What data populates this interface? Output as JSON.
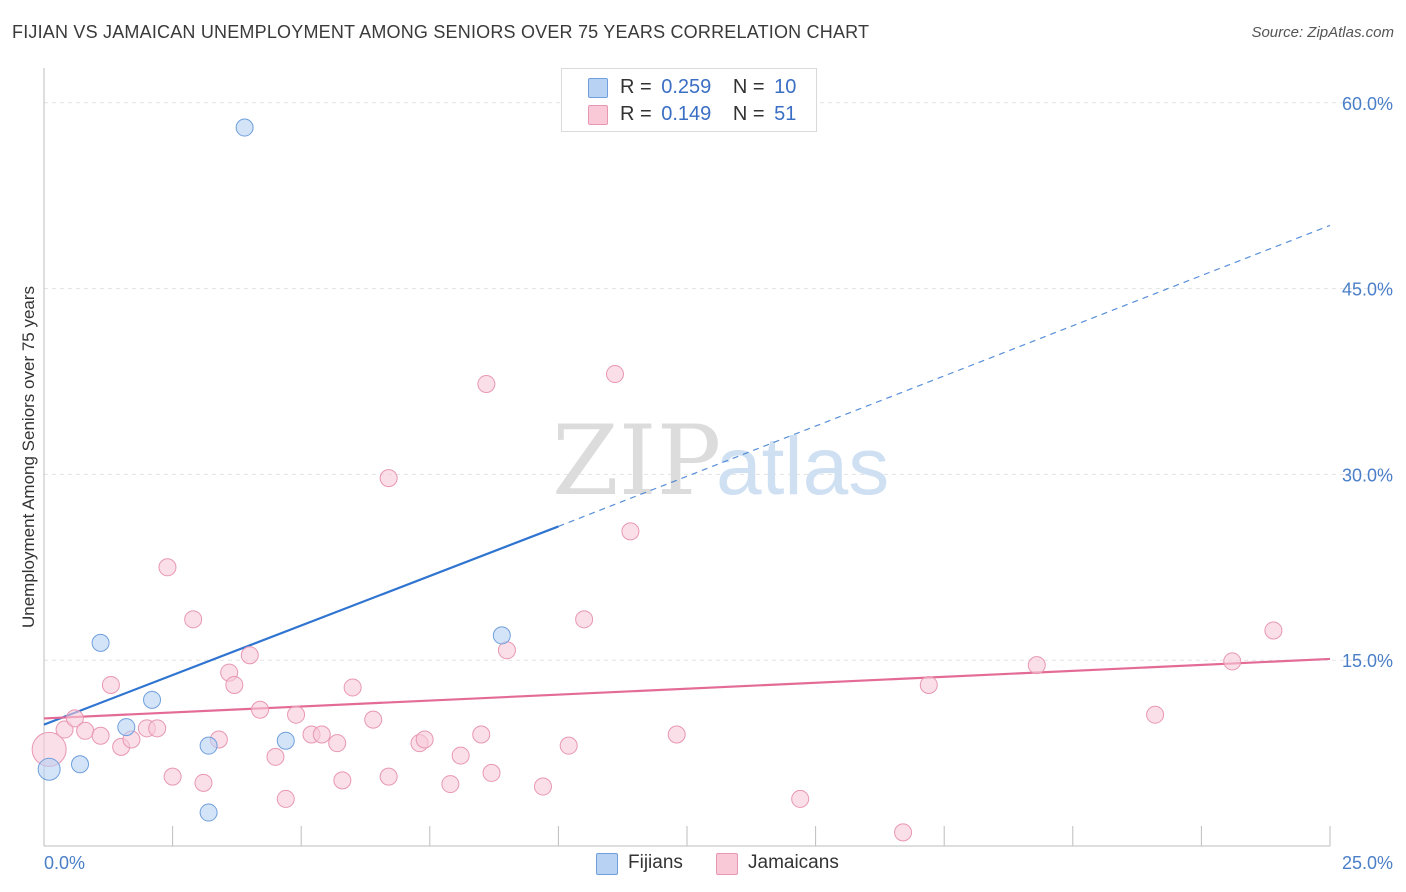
{
  "title": "FIJIAN VS JAMAICAN UNEMPLOYMENT AMONG SENIORS OVER 75 YEARS CORRELATION CHART",
  "source": "Source: ZipAtlas.com",
  "watermark": {
    "zip": "ZIP",
    "atlas": "atlas"
  },
  "legend": {
    "r_label": "R =",
    "n_label": "N =",
    "fijians": {
      "r": "0.259",
      "n": "10"
    },
    "jamaicans": {
      "r": "0.149",
      "n": "51"
    }
  },
  "bottom_legend": {
    "fijians": "Fijians",
    "jamaicans": "Jamaicans"
  },
  "colors": {
    "fijian_fill": "#b7d2f3",
    "fijian_stroke": "#6f9fdc",
    "fijian_line": "#2f74d0",
    "jamaican_fill": "#f9c9d8",
    "jamaican_stroke": "#e897b2",
    "jamaican_line": "#e36b96",
    "grid": "#e2e2e2",
    "axis_text": "#4a7fc8"
  },
  "chart_data": {
    "type": "scatter",
    "title": "FIJIAN VS JAMAICAN UNEMPLOYMENT AMONG SENIORS OVER 75 YEARS CORRELATION CHART",
    "xlabel": "",
    "ylabel": "Unemployment Among Seniors over 75 years",
    "xlim": [
      0,
      25
    ],
    "ylim": [
      0,
      62
    ],
    "x_tick_labels": [
      "0.0%",
      "25.0%"
    ],
    "y_ticks": [
      15,
      30,
      45,
      60
    ],
    "y_tick_labels": [
      "15.0%",
      "30.0%",
      "45.0%",
      "60.0%"
    ],
    "series": [
      {
        "name": "Fijians",
        "points": [
          [
            0.1,
            6.2
          ],
          [
            0.7,
            6.6
          ],
          [
            1.1,
            16.4
          ],
          [
            1.6,
            9.6
          ],
          [
            2.1,
            11.8
          ],
          [
            3.2,
            2.7
          ],
          [
            3.2,
            8.1
          ],
          [
            3.9,
            58.0
          ],
          [
            4.7,
            8.5
          ],
          [
            8.9,
            17.0
          ]
        ],
        "trend": {
          "x0": 0,
          "y0": 9.8,
          "x1": 10.0,
          "y1": 25.8,
          "x_end": 25,
          "y_end": 50.1
        }
      },
      {
        "name": "Jamaicans",
        "points": [
          [
            0.1,
            7.8
          ],
          [
            0.4,
            9.4
          ],
          [
            0.6,
            10.3
          ],
          [
            0.8,
            9.3
          ],
          [
            1.1,
            8.9
          ],
          [
            1.3,
            13.0
          ],
          [
            1.5,
            8.0
          ],
          [
            1.7,
            8.6
          ],
          [
            2.0,
            9.5
          ],
          [
            2.2,
            9.5
          ],
          [
            2.4,
            22.5
          ],
          [
            2.5,
            5.6
          ],
          [
            2.9,
            18.3
          ],
          [
            3.1,
            5.1
          ],
          [
            3.4,
            8.6
          ],
          [
            3.6,
            14.0
          ],
          [
            3.7,
            13.0
          ],
          [
            4.0,
            15.4
          ],
          [
            4.2,
            11.0
          ],
          [
            4.5,
            7.2
          ],
          [
            4.7,
            3.8
          ],
          [
            4.9,
            10.6
          ],
          [
            5.2,
            9.0
          ],
          [
            5.4,
            9.0
          ],
          [
            5.7,
            8.3
          ],
          [
            5.8,
            5.3
          ],
          [
            6.0,
            12.8
          ],
          [
            6.4,
            10.2
          ],
          [
            6.7,
            29.7
          ],
          [
            6.7,
            5.6
          ],
          [
            7.3,
            8.3
          ],
          [
            7.4,
            8.6
          ],
          [
            7.9,
            5.0
          ],
          [
            8.1,
            7.3
          ],
          [
            8.5,
            9.0
          ],
          [
            8.6,
            37.3
          ],
          [
            8.7,
            5.9
          ],
          [
            9.0,
            15.8
          ],
          [
            9.7,
            4.8
          ],
          [
            10.2,
            8.1
          ],
          [
            10.5,
            18.3
          ],
          [
            11.1,
            38.1
          ],
          [
            11.4,
            25.4
          ],
          [
            12.3,
            9.0
          ],
          [
            14.7,
            3.8
          ],
          [
            16.7,
            1.1
          ],
          [
            17.2,
            13.0
          ],
          [
            19.3,
            14.6
          ],
          [
            21.6,
            10.6
          ],
          [
            23.1,
            14.9
          ],
          [
            23.9,
            17.4
          ]
        ],
        "trend": {
          "x0": 0,
          "y0": 10.3,
          "x1": 25,
          "y1": 15.1
        }
      }
    ]
  }
}
